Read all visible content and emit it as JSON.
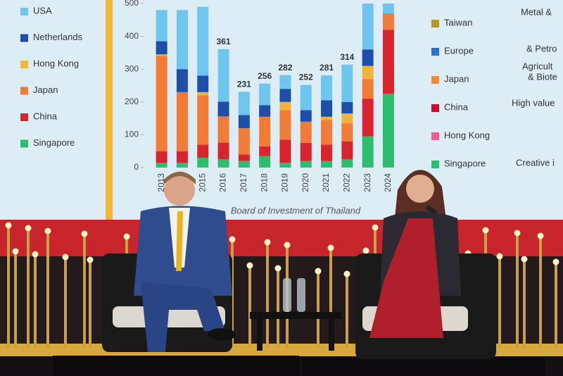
{
  "chart_data": {
    "type": "bar",
    "categories": [
      "2013",
      "2014",
      "2015",
      "2016",
      "2017",
      "2018",
      "2019",
      "2020",
      "2021",
      "2022",
      "2023",
      "2024"
    ],
    "series": [
      {
        "name": "Singapore",
        "color": "#2dbd6e",
        "values": [
          15,
          15,
          30,
          25,
          20,
          35,
          15,
          20,
          20,
          25,
          95,
          225
        ]
      },
      {
        "name": "China",
        "color": "#d9232e",
        "values": [
          35,
          35,
          40,
          51,
          20,
          30,
          70,
          55,
          50,
          55,
          115,
          195
        ]
      },
      {
        "name": "Japan",
        "color": "#f27b35",
        "values": [
          290,
          180,
          150,
          80,
          80,
          90,
          90,
          65,
          75,
          55,
          60,
          50
        ]
      },
      {
        "name": "Hong Kong",
        "color": "#f0b43c",
        "values": [
          5,
          0,
          10,
          0,
          0,
          0,
          25,
          0,
          10,
          30,
          40,
          0
        ]
      },
      {
        "name": "Netherlands",
        "color": "#1f4ea8",
        "values": [
          40,
          70,
          50,
          45,
          40,
          35,
          40,
          35,
          50,
          35,
          50,
          0
        ]
      },
      {
        "name": "USA",
        "color": "#6ec6ee",
        "values": [
          95,
          180,
          210,
          160,
          71,
          66,
          42,
          77,
          76,
          114,
          140,
          30
        ]
      }
    ],
    "totals": [
      null,
      null,
      null,
      361,
      231,
      256,
      282,
      252,
      281,
      314,
      null,
      null
    ],
    "ylim": [
      0,
      500
    ],
    "yticks": [
      0,
      100,
      200,
      300,
      400,
      500
    ],
    "caption": "Board of Investment of Thailand",
    "right_legend": [
      {
        "name": "Taiwan",
        "color": "#b8962e"
      },
      {
        "name": "Europe",
        "color": "#2d6fd6"
      },
      {
        "name": "Japan",
        "color": "#f08a3a"
      },
      {
        "name": "China",
        "color": "#c8102e"
      },
      {
        "name": "Hong Kong",
        "color": "#ef5b8a"
      },
      {
        "name": "Singapore",
        "color": "#2dbd6e"
      }
    ],
    "side_texts": [
      "Metal &",
      "& Petro",
      "Agricult",
      "& Biote",
      "High value",
      "Creative i"
    ]
  }
}
